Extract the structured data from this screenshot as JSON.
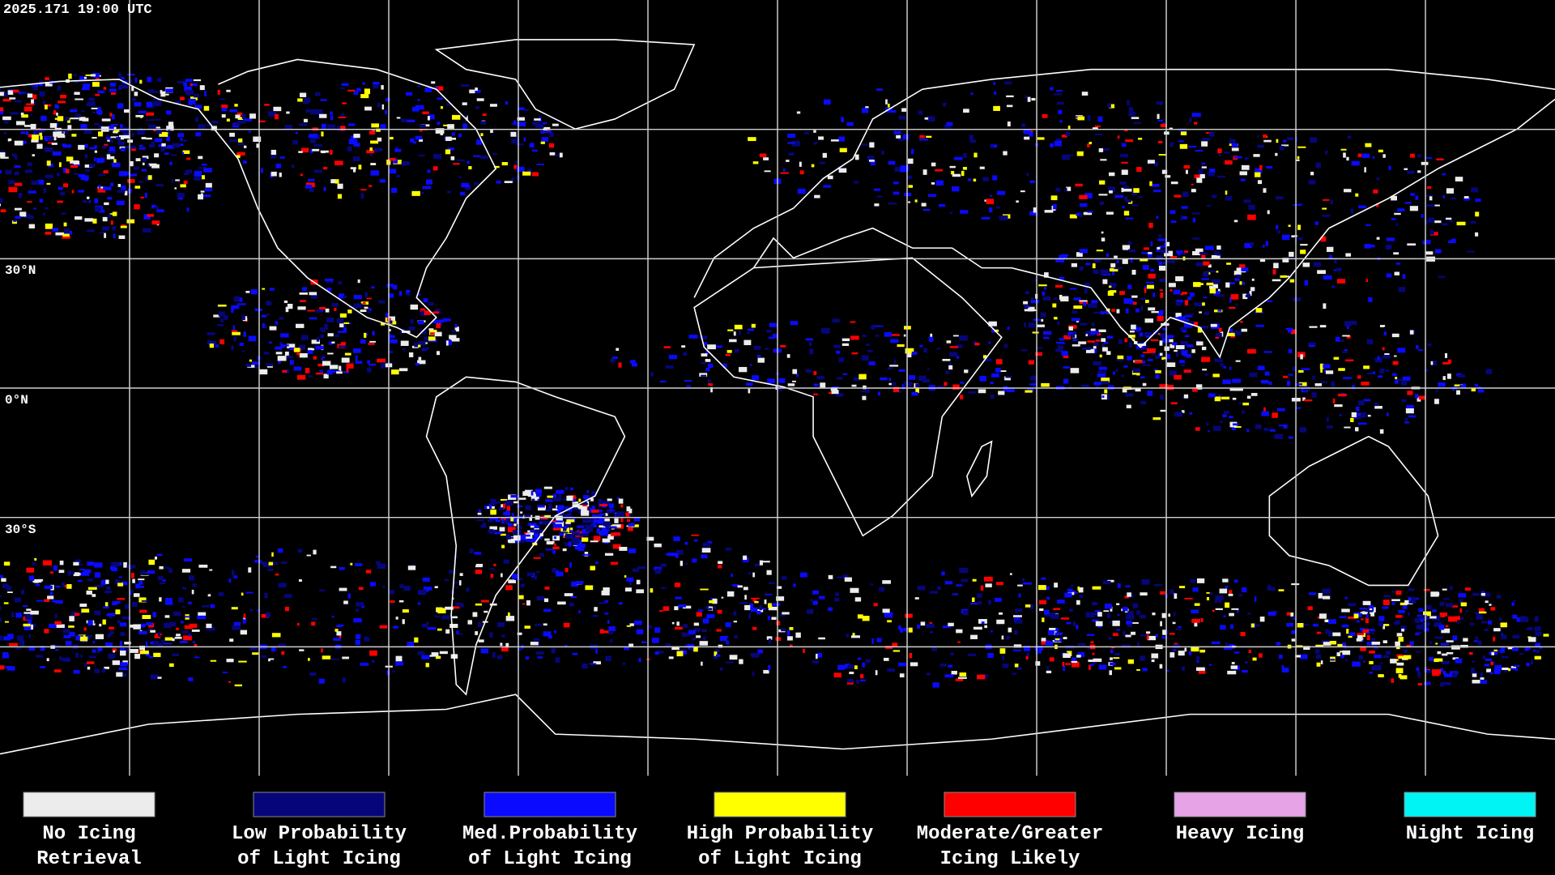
{
  "header": {
    "timestamp": "2025.171 19:00 UTC"
  },
  "map": {
    "lat_labels": [
      "30°N",
      "0°N",
      "30°S"
    ]
  },
  "legend": {
    "items": [
      {
        "lines": [
          "No Icing",
          "Retrieval"
        ],
        "color": "#ececec"
      },
      {
        "lines": [
          "Low Probability",
          "of Light Icing"
        ],
        "color": "#06067a"
      },
      {
        "lines": [
          "Med.Probability",
          "of Light Icing"
        ],
        "color": "#0a0aff"
      },
      {
        "lines": [
          "High Probability",
          "of Light Icing"
        ],
        "color": "#ffff00"
      },
      {
        "lines": [
          "Moderate/Greater",
          "Icing Likely"
        ],
        "color": "#ff0000"
      },
      {
        "lines": [
          "Heavy Icing"
        ],
        "color": "#e6a4e6"
      },
      {
        "lines": [
          "Night Icing"
        ],
        "color": "#00f4f4"
      }
    ]
  }
}
